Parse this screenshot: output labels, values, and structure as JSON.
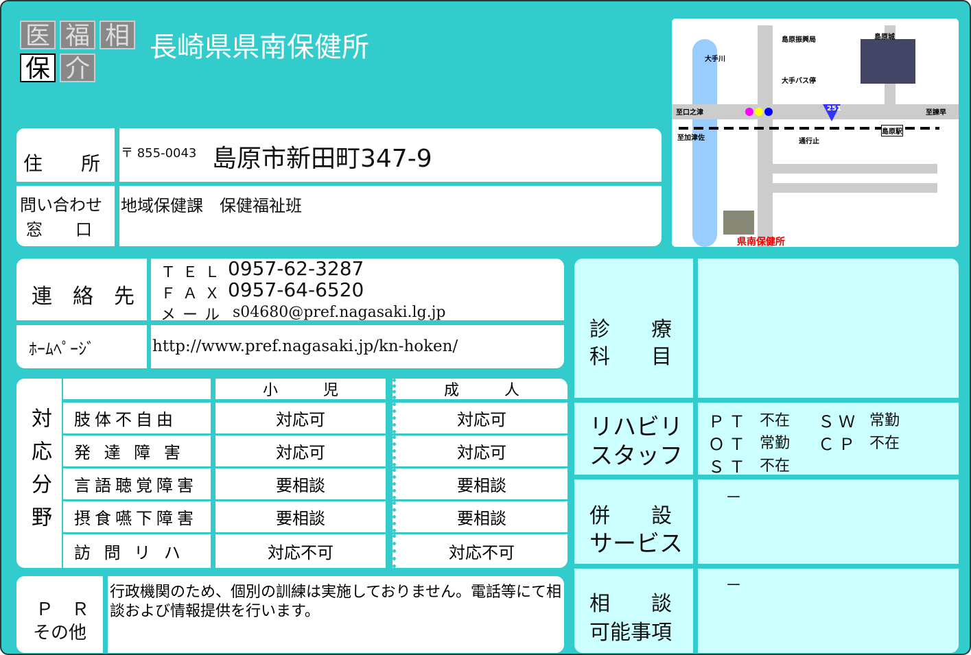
{
  "header": {
    "badges": [
      {
        "text": "医",
        "active": false
      },
      {
        "text": "福",
        "active": false
      },
      {
        "text": "相",
        "active": false
      },
      {
        "text": "保",
        "active": true
      },
      {
        "text": "介",
        "active": false
      }
    ],
    "title": "長崎県県南保健所"
  },
  "address": {
    "label": "住　　所",
    "postal": "〒 855-0043",
    "value": "島原市新田町347-9"
  },
  "inquiry": {
    "label": [
      "問い合わせ",
      "窓　　口"
    ],
    "value": "地域保健課　保健福祉班"
  },
  "contact": {
    "label": "連　絡　先",
    "lines": [
      {
        "label": "ＴＥＬ",
        "value": "0957-62-3287"
      },
      {
        "label": "ＦＡＸ",
        "value": "0957-64-6520"
      },
      {
        "label": "メール",
        "value": "s04680@pref.nagasaki.lg.jp"
      }
    ]
  },
  "homepage": {
    "label": "ﾎｰﾑﾍﾟｰｼﾞ",
    "value": "http://www.pref.nagasaki.jp/kn-hoken/"
  },
  "table": {
    "row_header": "対応分野",
    "columns": [
      "小　　　児",
      "成　　　人"
    ],
    "rows": [
      [
        "肢体不自由",
        "対応可",
        "対応可"
      ],
      [
        "発 達 障 害",
        "対応可",
        "対応可"
      ],
      [
        "言語聴覚障害",
        "要相談",
        "要相談"
      ],
      [
        "摂食嚥下障害",
        "要相談",
        "要相談"
      ],
      [
        "訪 問 リ ハ",
        "対応不可",
        "対応不可"
      ]
    ]
  },
  "pr": {
    "label": [
      "Ｐ　Ｒ",
      "その他"
    ],
    "text": "行政機関のため、個別の訓練は実施しておりません。電話等にて相談および情報提供を行います。"
  },
  "right": {
    "departments": {
      "label": [
        "診　　療",
        "科　　目"
      ]
    },
    "rehab": {
      "label": [
        "リハビリ",
        "スタッフ"
      ],
      "staff": [
        [
          "ＰＴ",
          "不在"
        ],
        [
          "ＳＷ",
          "常勤"
        ],
        [
          "ＯＴ",
          "常勤"
        ],
        [
          "ＣＰ",
          "不在"
        ],
        [
          "ＳＴ",
          "不在"
        ]
      ]
    },
    "services": {
      "label": [
        "併　　設",
        "サービス"
      ],
      "value": "－"
    },
    "consult": {
      "label": [
        "相　　談",
        "可能事項"
      ],
      "value": "－"
    }
  },
  "map": {
    "labels": [
      "大手川",
      "島原振興局",
      "島原城",
      "大手バス停",
      "至口之津",
      "至諫早",
      "至加津佐",
      "島原駅",
      "通行止",
      "251",
      "県南保健所"
    ]
  }
}
